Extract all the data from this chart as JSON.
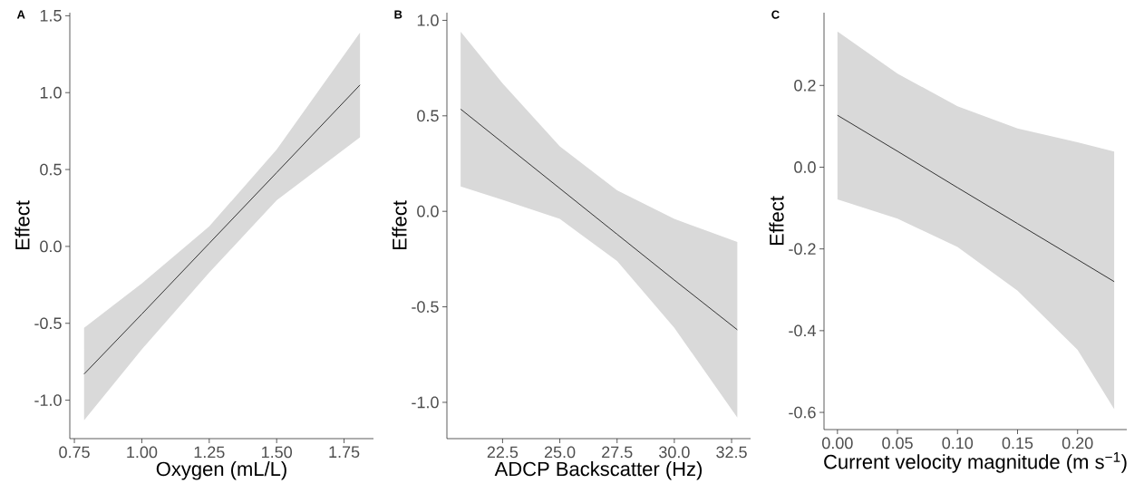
{
  "chart_data": [
    {
      "type": "line",
      "title": "A",
      "xlabel": "Oxygen (mL/L)",
      "ylabel": "Effect",
      "xlim": [
        0.733,
        1.859
      ],
      "ylim": [
        -1.25,
        1.52
      ],
      "xticks": [
        0.75,
        {
          "value": 1.0,
          "label": "1.00"
        },
        1.25,
        {
          "value": 1.5,
          "label": "1.50"
        },
        1.75
      ],
      "yticks": [
        {
          "value": -1.0,
          "label": "-1.0"
        },
        -0.5,
        {
          "value": 0.0,
          "label": "0.0"
        },
        0.5,
        {
          "value": 1.0,
          "label": "1.0"
        },
        1.5
      ],
      "series": [
        {
          "color": "#333333",
          "x": [
            0.786,
            1.0,
            1.25,
            1.5,
            1.809
          ],
          "values": [
            -0.83,
            -0.44,
            0.02,
            0.48,
            1.05
          ],
          "lower": [
            -1.13,
            -0.67,
            -0.17,
            0.3,
            0.71
          ],
          "upper": [
            -0.53,
            -0.24,
            0.13,
            0.63,
            1.39
          ]
        }
      ]
    },
    {
      "type": "line",
      "title": "B",
      "xlabel": "ADCP Backscatter (Hz)",
      "ylabel": "Effect",
      "xlim": [
        20.07,
        33.33
      ],
      "ylim": [
        -1.19,
        1.04
      ],
      "xticks": [
        22.5,
        {
          "value": 25.0,
          "label": "25.0"
        },
        27.5,
        {
          "value": 30.0,
          "label": "30.0"
        },
        32.5
      ],
      "yticks": [
        {
          "value": -1.0,
          "label": "-1.0"
        },
        -0.5,
        {
          "value": 0.0,
          "label": "0.0"
        },
        0.5,
        {
          "value": 1.0,
          "label": "1.0"
        }
      ],
      "series": [
        {
          "color": "#333333",
          "x": [
            20.67,
            22.5,
            25.0,
            27.5,
            30.0,
            32.75
          ],
          "values": [
            0.535,
            0.36,
            0.12,
            -0.12,
            -0.36,
            -0.62
          ],
          "lower": [
            0.13,
            0.06,
            -0.04,
            -0.26,
            -0.61,
            -1.08
          ],
          "upper": [
            0.94,
            0.67,
            0.34,
            0.11,
            -0.04,
            -0.16
          ]
        }
      ]
    },
    {
      "type": "line",
      "title": "C",
      "xlabel": "Current velocity magnitude (m s$^{−1}$)",
      "ylabel": "Effect",
      "xlim": [
        -0.0112,
        0.241
      ],
      "ylim": [
        -0.642,
        0.378
      ],
      "xticks": [
        {
          "value": 0.0,
          "label": "0.00"
        },
        0.05,
        {
          "value": 0.1,
          "label": "0.10"
        },
        0.15,
        {
          "value": 0.2,
          "label": "0.20"
        }
      ],
      "yticks": [
        -0.6,
        -0.4,
        -0.2,
        {
          "value": 0.0,
          "label": "0.0"
        },
        0.2
      ],
      "series": [
        {
          "color": "#333333",
          "x": [
            0.0,
            0.05,
            0.1,
            0.15,
            0.2,
            0.2305
          ],
          "values": [
            0.127,
            0.039,
            -0.05,
            -0.138,
            -0.226,
            -0.28
          ],
          "lower": [
            -0.079,
            -0.126,
            -0.195,
            -0.302,
            -0.447,
            -0.592
          ],
          "upper": [
            0.332,
            0.229,
            0.149,
            0.095,
            0.061,
            0.038
          ]
        }
      ]
    }
  ]
}
